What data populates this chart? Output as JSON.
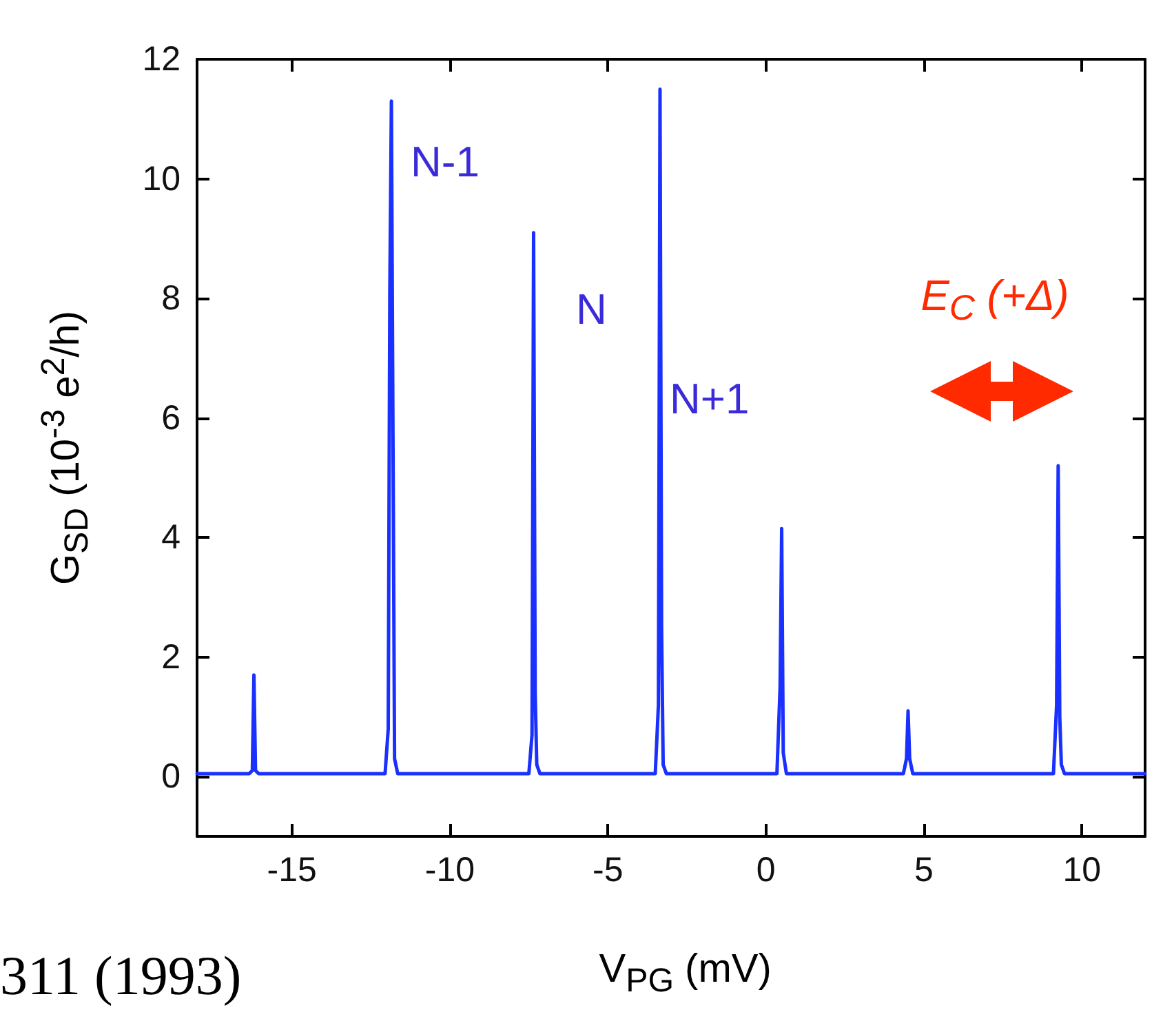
{
  "chart_data": {
    "type": "line",
    "xlabel": "V$_{PG}$ (mV)",
    "ylabel": "G$_{SD}$ (10$^{-3}$ e$^{2}$/h)",
    "x": [
      -18,
      -16.35,
      -16.25,
      -16.2,
      -16.15,
      -16.05,
      -12.05,
      -11.95,
      -11.9,
      -11.85,
      -11.8,
      -11.75,
      -11.65,
      -7.5,
      -7.4,
      -7.35,
      -7.3,
      -7.25,
      -7.15,
      -3.5,
      -3.4,
      -3.35,
      -3.3,
      -3.25,
      -3.15,
      0.35,
      0.45,
      0.5,
      0.55,
      0.65,
      4.35,
      4.45,
      4.5,
      4.55,
      4.65,
      9.1,
      9.2,
      9.25,
      9.3,
      9.35,
      9.45,
      12
    ],
    "series": [
      {
        "color": "#1a30ff",
        "values": [
          0.05,
          0.05,
          0.1,
          1.7,
          0.1,
          0.05,
          0.05,
          0.8,
          8.1,
          11.3,
          5.7,
          0.3,
          0.05,
          0.05,
          0.7,
          9.1,
          1.4,
          0.2,
          0.05,
          0.05,
          1.2,
          11.5,
          2.5,
          0.2,
          0.05,
          0.05,
          1.5,
          4.15,
          0.4,
          0.05,
          0.05,
          0.3,
          1.1,
          0.3,
          0.05,
          0.05,
          1.2,
          5.2,
          1.0,
          0.2,
          0.05,
          0.05
        ]
      }
    ],
    "xlim": [
      -18,
      12
    ],
    "xticks": [
      -15,
      -10,
      -5,
      0,
      5,
      10
    ],
    "ylim": [
      -1,
      12
    ],
    "yticks": [
      0,
      2,
      4,
      6,
      8,
      10,
      12
    ],
    "grid": false,
    "marker": "none",
    "line_style": "solid",
    "annotations": [
      "N-1",
      "N",
      "N+1",
      "E$_{C}$ (+Δ)",
      "311 (1993)"
    ]
  }
}
